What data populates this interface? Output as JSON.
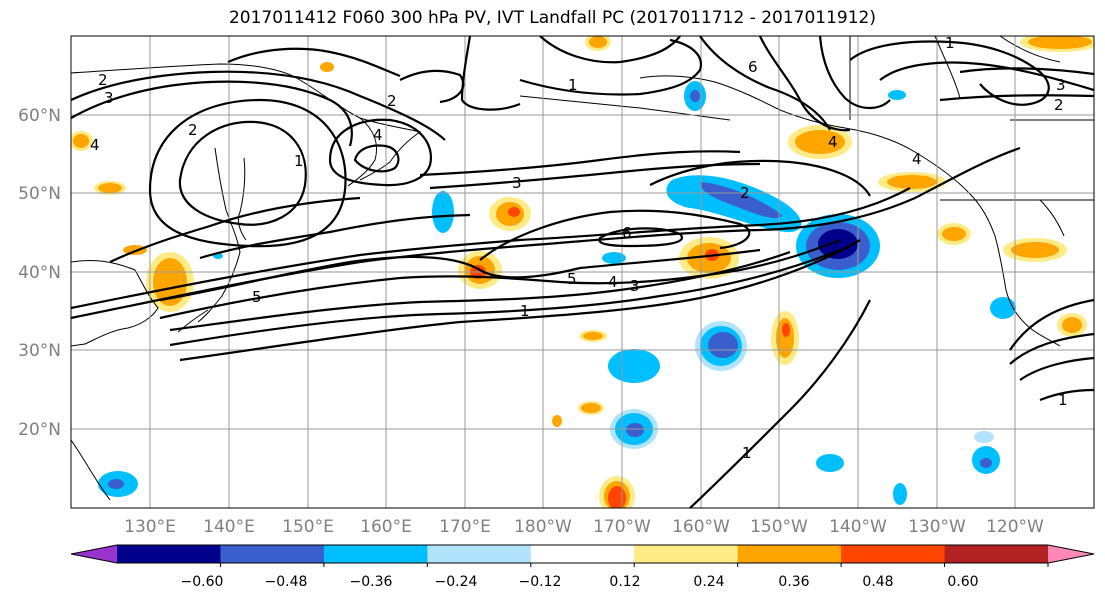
{
  "title": "2017011412 F060 300 hPa PV, IVT Landfall PC (2017011712 - 2017011912)",
  "lat_labels": [
    "60°N",
    "50°N",
    "40°N",
    "30°N",
    "20°N"
  ],
  "lon_labels": [
    "130°E",
    "140°E",
    "150°E",
    "160°E",
    "170°E",
    "180°W",
    "170°W",
    "160°W",
    "150°W",
    "140°W",
    "130°W",
    "120°W"
  ],
  "colorbar": {
    "ticks": [
      "−0.60",
      "−0.48",
      "−0.36",
      "−0.24",
      "−0.12",
      "0.12",
      "0.24",
      "0.36",
      "0.48",
      "0.60"
    ],
    "colors": [
      "#9a32cd",
      "#00008b",
      "#3a5fcd",
      "#00bfff",
      "#b2e3fd",
      "#ffffff",
      "#ffeb85",
      "#ffa500",
      "#ff4500",
      "#b22222",
      "#ff89b4"
    ]
  },
  "contour_labels": [
    "2",
    "3",
    "4",
    "2",
    "1",
    "2",
    "4",
    "1",
    "6",
    "1",
    "3",
    "2",
    "4",
    "4",
    "3",
    "2",
    "6",
    "5",
    "4",
    "3",
    "5",
    "1",
    "1",
    "1"
  ],
  "colors": {
    "neg_strong": "#00008b",
    "neg_mid": "#3a5fcd",
    "neg_light": "#00bfff",
    "pos_light": "#ffeb85",
    "pos_mid": "#ffa500",
    "pos_strong": "#ff4500"
  }
}
